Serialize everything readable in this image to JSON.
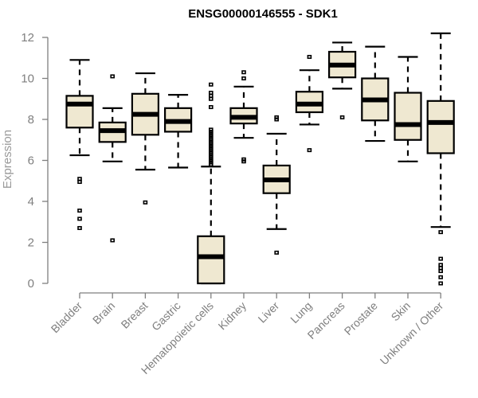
{
  "chart_data": {
    "type": "box",
    "title": "ENSG00000146555 - SDK1",
    "xlabel": "",
    "ylabel": "Expression",
    "ylim": [
      0,
      12
    ],
    "yticks": [
      0,
      2,
      4,
      6,
      8,
      10,
      12
    ],
    "grid": false,
    "box_fill": "#efe8d1",
    "box_stroke": "#000000",
    "axis_color": "#7f7f7f",
    "categories": [
      "Bladder",
      "Brain",
      "Breast",
      "Gastric",
      "Hematopoietic cells",
      "Kidney",
      "Liver",
      "Lung",
      "Pancreas",
      "Prostate",
      "Skin",
      "Unknown / Other"
    ],
    "boxes": [
      {
        "name": "Bladder",
        "whisker_low": 6.25,
        "q1": 7.6,
        "median": 8.75,
        "q3": 9.15,
        "whisker_high": 10.9,
        "outliers": [
          5.1,
          4.95,
          3.55,
          3.15,
          2.7
        ]
      },
      {
        "name": "Brain",
        "whisker_low": 5.95,
        "q1": 6.9,
        "median": 7.45,
        "q3": 7.85,
        "whisker_high": 8.55,
        "outliers": [
          10.1,
          2.1
        ]
      },
      {
        "name": "Breast",
        "whisker_low": 5.55,
        "q1": 7.25,
        "median": 8.25,
        "q3": 9.25,
        "whisker_high": 10.25,
        "outliers": [
          3.95
        ]
      },
      {
        "name": "Gastric",
        "whisker_low": 5.65,
        "q1": 7.4,
        "median": 7.9,
        "q3": 8.55,
        "whisker_high": 9.2,
        "outliers": []
      },
      {
        "name": "Hematopoietic cells",
        "whisker_low": 0.0,
        "q1": 0.0,
        "median": 1.3,
        "q3": 2.3,
        "whisker_high": 5.7,
        "outliers": [
          9.7,
          9.3,
          9.15,
          9.0,
          8.6,
          7.5,
          7.4,
          7.3,
          7.2,
          7.1,
          7.0,
          6.9,
          6.8,
          6.7,
          6.6,
          6.5,
          6.4,
          6.3,
          6.2,
          6.1,
          6.0,
          5.9,
          5.8
        ]
      },
      {
        "name": "Kidney",
        "whisker_low": 7.1,
        "q1": 7.8,
        "median": 8.1,
        "q3": 8.55,
        "whisker_high": 9.6,
        "outliers": [
          10.3,
          10.0,
          6.05,
          5.95
        ]
      },
      {
        "name": "Liver",
        "whisker_low": 2.65,
        "q1": 4.4,
        "median": 5.05,
        "q3": 5.75,
        "whisker_high": 7.3,
        "outliers": [
          8.1,
          8.0,
          1.5
        ]
      },
      {
        "name": "Lung",
        "whisker_low": 7.75,
        "q1": 8.35,
        "median": 8.75,
        "q3": 9.35,
        "whisker_high": 10.4,
        "outliers": [
          11.05,
          6.5
        ]
      },
      {
        "name": "Pancreas",
        "whisker_low": 9.5,
        "q1": 10.05,
        "median": 10.65,
        "q3": 11.3,
        "whisker_high": 11.75,
        "outliers": [
          8.1
        ]
      },
      {
        "name": "Prostate",
        "whisker_low": 6.95,
        "q1": 7.95,
        "median": 8.95,
        "q3": 10.0,
        "whisker_high": 11.55,
        "outliers": []
      },
      {
        "name": "Skin",
        "whisker_low": 5.95,
        "q1": 7.0,
        "median": 7.75,
        "q3": 9.3,
        "whisker_high": 11.05,
        "outliers": []
      },
      {
        "name": "Unknown / Other",
        "whisker_low": 2.75,
        "q1": 6.35,
        "median": 7.85,
        "q3": 8.9,
        "whisker_high": 12.2,
        "outliers": [
          2.5,
          1.2,
          0.9,
          0.75,
          0.6,
          0.3,
          0.0
        ]
      }
    ]
  }
}
